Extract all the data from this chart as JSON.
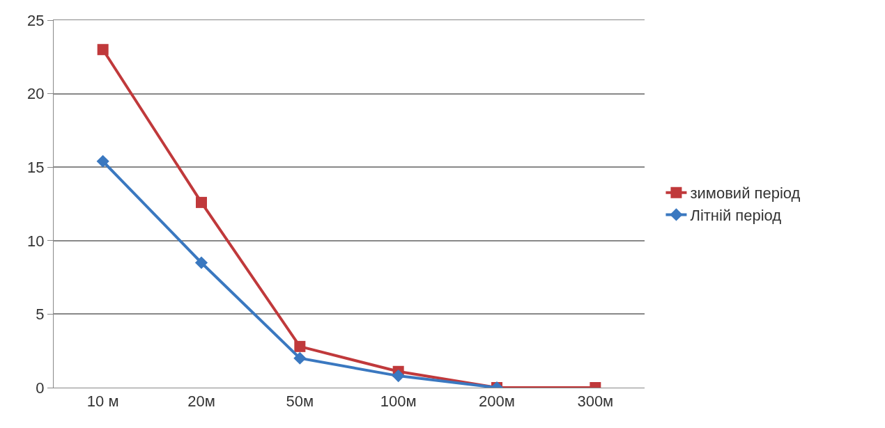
{
  "chart_data": {
    "type": "line",
    "categories": [
      "10 м",
      "20м",
      "50м",
      "100м",
      "200м",
      "300м"
    ],
    "series": [
      {
        "name": "зимовий період",
        "color": "#c0393b",
        "marker": "square",
        "values": [
          23.0,
          12.6,
          2.8,
          1.1,
          0,
          0
        ]
      },
      {
        "name": "Літній період",
        "color": "#3a78c0",
        "marker": "diamond",
        "values": [
          15.4,
          8.5,
          2.0,
          0.8,
          0,
          null
        ]
      }
    ],
    "ylim": [
      0,
      25
    ],
    "yticks": [
      0,
      5,
      10,
      15,
      20,
      25
    ],
    "grid": "y",
    "legend": "right",
    "line_style": "solid"
  }
}
